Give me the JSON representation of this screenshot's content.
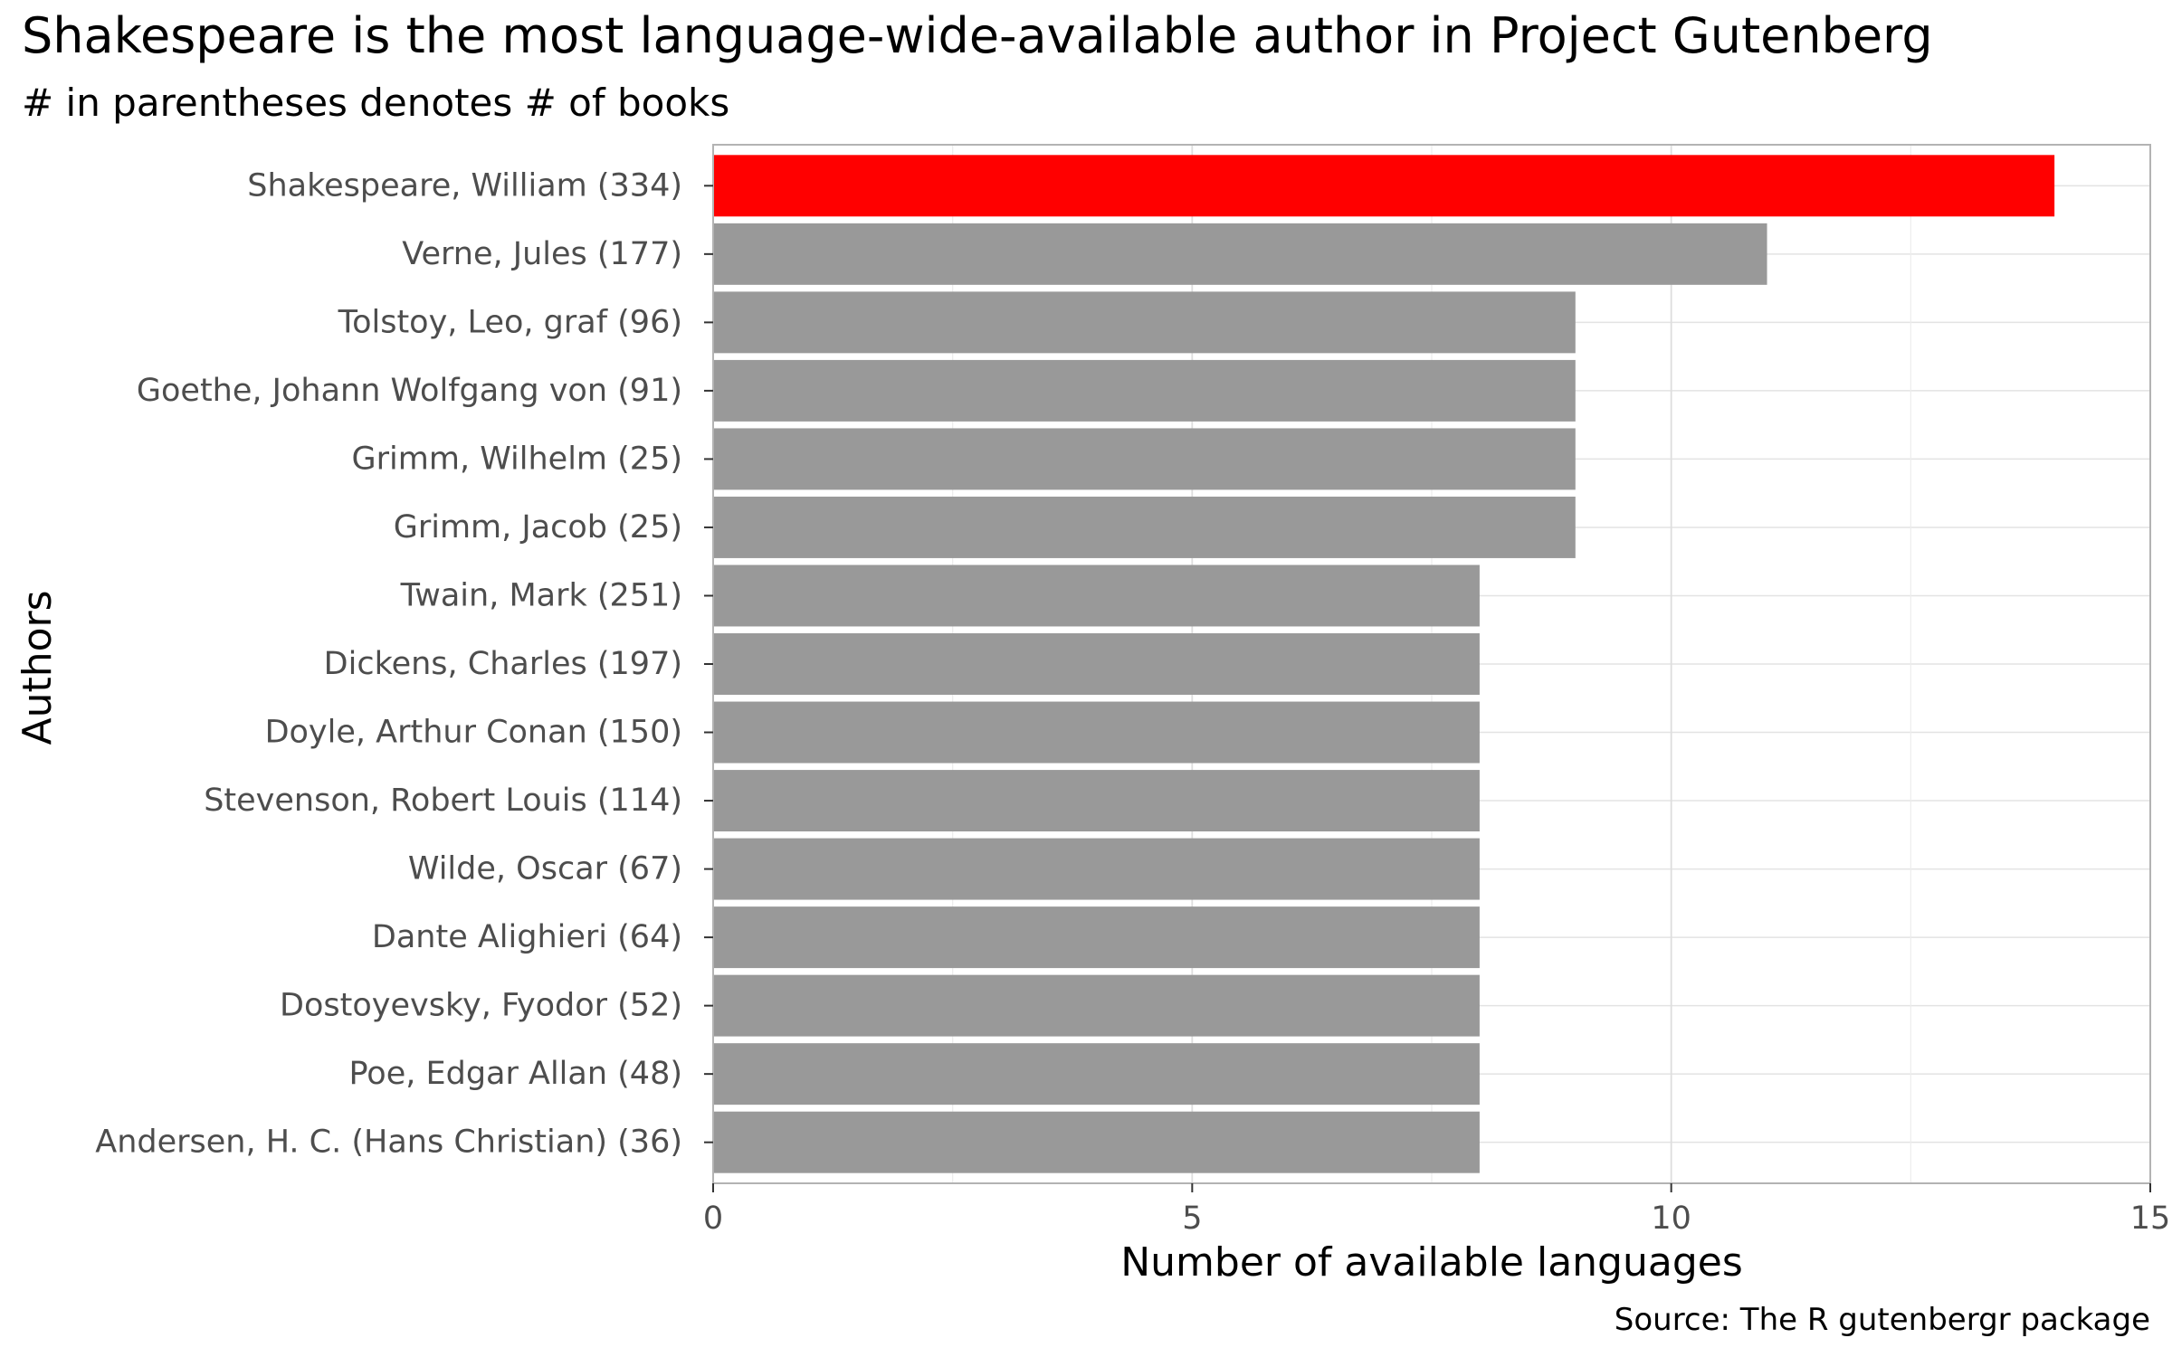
{
  "chart_data": {
    "type": "bar",
    "orientation": "horizontal",
    "title": "Shakespeare is the most language-wide-available author in Project Gutenberg",
    "subtitle": "# in parentheses denotes # of books",
    "xlabel": "Number of available languages",
    "ylabel": "Authors",
    "caption": "Source: The R gutenbergr package",
    "xlim": [
      0,
      15
    ],
    "x_ticks": [
      0,
      5,
      10,
      15
    ],
    "grid": true,
    "legend": "none",
    "highlight_color": "#ff0000",
    "bar_color": "#999999",
    "categories": [
      "Shakespeare, William (334)",
      "Verne, Jules (177)",
      "Tolstoy, Leo, graf (96)",
      "Goethe, Johann Wolfgang von (91)",
      "Grimm, Wilhelm (25)",
      "Grimm, Jacob (25)",
      "Twain, Mark (251)",
      "Dickens, Charles (197)",
      "Doyle, Arthur Conan (150)",
      "Stevenson, Robert Louis (114)",
      "Wilde, Oscar (67)",
      "Dante Alighieri (64)",
      "Dostoyevsky, Fyodor (52)",
      "Poe, Edgar Allan (48)",
      "Andersen, H. C. (Hans Christian) (36)"
    ],
    "values": [
      14,
      11,
      9,
      9,
      9,
      9,
      8,
      8,
      8,
      8,
      8,
      8,
      8,
      8,
      8
    ],
    "highlighted": [
      "Shakespeare, William (334)"
    ]
  }
}
